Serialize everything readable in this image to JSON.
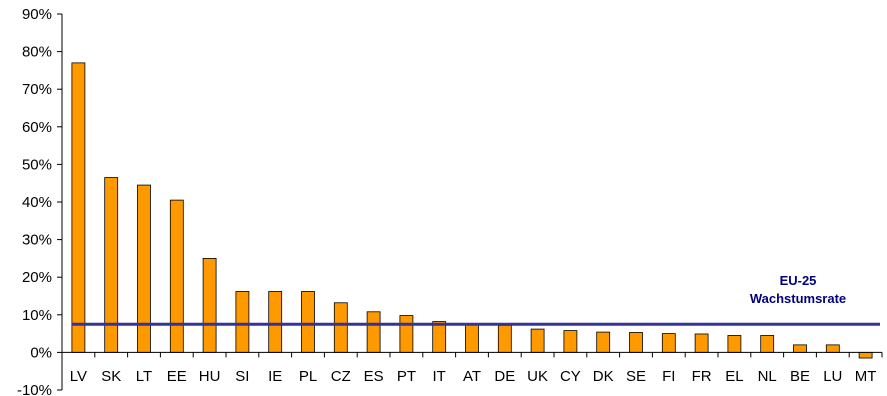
{
  "chart_data": {
    "type": "bar",
    "categories": [
      "LV",
      "SK",
      "LT",
      "EE",
      "HU",
      "SI",
      "IE",
      "PL",
      "CZ",
      "ES",
      "PT",
      "IT",
      "AT",
      "DE",
      "UK",
      "CY",
      "DK",
      "SE",
      "FI",
      "FR",
      "EL",
      "NL",
      "BE",
      "LU",
      "MT"
    ],
    "values": [
      77,
      46.5,
      44.5,
      40.5,
      25,
      16.2,
      16.2,
      16.2,
      13.2,
      10.8,
      9.8,
      8.2,
      7.3,
      7.2,
      6.2,
      5.8,
      5.4,
      5.3,
      5.0,
      4.9,
      4.5,
      4.5,
      2.0,
      2.0,
      -1.5
    ],
    "ylim": [
      -10,
      90
    ],
    "yticks": [
      -10,
      0,
      10,
      20,
      30,
      40,
      50,
      60,
      70,
      80,
      90
    ],
    "ytick_labels": [
      "-10%",
      "0%",
      "10%",
      "20%",
      "30%",
      "40%",
      "50%",
      "60%",
      "70%",
      "80%",
      "90%"
    ],
    "reference_line": {
      "value": 7.5,
      "label_line1": "EU-25",
      "label_line2": "Wachstumsrate"
    },
    "colors": {
      "bar_fill": "#FF9900",
      "bar_stroke": "#000000",
      "reference_line": "#333399",
      "reference_label": "#000080"
    },
    "grid": false,
    "legend": "none"
  }
}
